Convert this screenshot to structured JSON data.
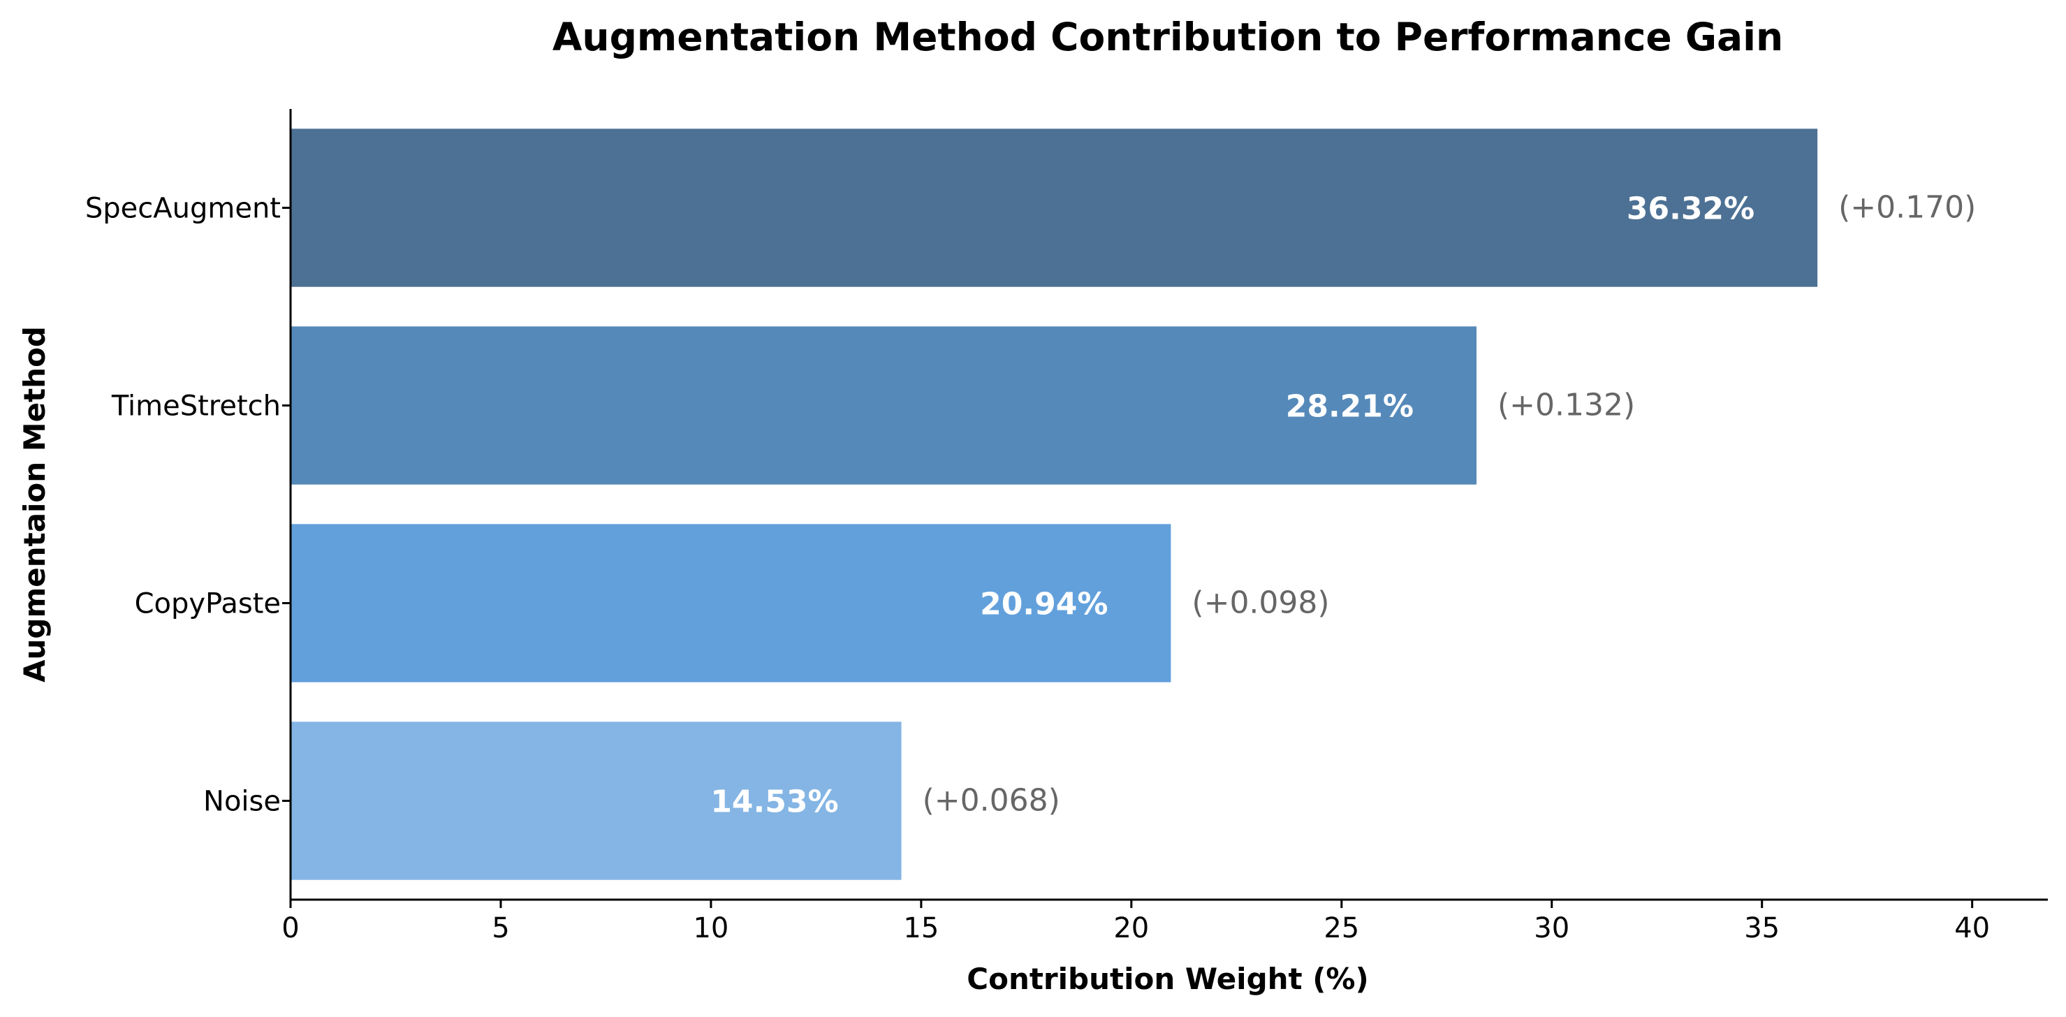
{
  "chart_data": {
    "type": "bar",
    "orientation": "horizontal",
    "title": "Augmentation Method Contribution to Performance Gain",
    "xlabel": "Contribution Weight (%)",
    "ylabel": "Augmentaion Method",
    "categories": [
      "SpecAugment",
      "TimeStretch",
      "CopyPaste",
      "Noise"
    ],
    "values": [
      36.32,
      28.21,
      20.94,
      14.53
    ],
    "value_labels": [
      "36.32%",
      "28.21%",
      "20.94%",
      "14.53%"
    ],
    "delta_labels": [
      "(+0.170)",
      "(+0.132)",
      "(+0.098)",
      "(+0.068)"
    ],
    "colors": [
      "#4d7194",
      "#5589b9",
      "#62a0dc",
      "#84b5e4"
    ],
    "xlim": [
      0,
      41.8
    ],
    "xticks": [
      0,
      5,
      10,
      15,
      20,
      25,
      30,
      35,
      40
    ],
    "grid": false,
    "legend": "none"
  }
}
